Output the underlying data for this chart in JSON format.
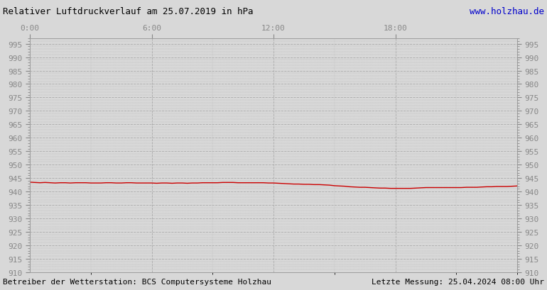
{
  "title": "Relativer Luftdruckverlauf am 25.07.2019 in hPa",
  "title_color": "#000000",
  "url_text": "www.holzhau.de",
  "url_color": "#0000cc",
  "footer_left": "Betreiber der Wetterstation: BCS Computersysteme Holzhau",
  "footer_right": "Letzte Messung: 25.04.2024 08:00 Uhr",
  "footer_color": "#000000",
  "bg_color": "#d8d8d8",
  "plot_bg_color": "#d8d8d8",
  "line_color": "#cc0000",
  "grid_color": "#aaaaaa",
  "tick_color": "#888888",
  "ylim": [
    910,
    997
  ],
  "ytick_step": 5,
  "xtick_labels": [
    "0:00",
    "6:00",
    "12:00",
    "18:00"
  ],
  "xtick_positions": [
    0,
    0.25,
    0.5,
    0.75
  ],
  "pressure_data": [
    [
      0.0,
      943.5
    ],
    [
      0.01,
      943.4
    ],
    [
      0.021,
      943.3
    ],
    [
      0.031,
      943.4
    ],
    [
      0.042,
      943.3
    ],
    [
      0.052,
      943.2
    ],
    [
      0.063,
      943.3
    ],
    [
      0.073,
      943.3
    ],
    [
      0.083,
      943.2
    ],
    [
      0.094,
      943.3
    ],
    [
      0.104,
      943.3
    ],
    [
      0.115,
      943.3
    ],
    [
      0.125,
      943.2
    ],
    [
      0.135,
      943.2
    ],
    [
      0.146,
      943.2
    ],
    [
      0.156,
      943.3
    ],
    [
      0.167,
      943.3
    ],
    [
      0.177,
      943.2
    ],
    [
      0.188,
      943.2
    ],
    [
      0.198,
      943.3
    ],
    [
      0.208,
      943.3
    ],
    [
      0.219,
      943.2
    ],
    [
      0.229,
      943.2
    ],
    [
      0.24,
      943.2
    ],
    [
      0.25,
      943.2
    ],
    [
      0.26,
      943.1
    ],
    [
      0.271,
      943.2
    ],
    [
      0.281,
      943.2
    ],
    [
      0.292,
      943.1
    ],
    [
      0.302,
      943.2
    ],
    [
      0.313,
      943.2
    ],
    [
      0.323,
      943.1
    ],
    [
      0.333,
      943.2
    ],
    [
      0.344,
      943.2
    ],
    [
      0.354,
      943.3
    ],
    [
      0.365,
      943.3
    ],
    [
      0.375,
      943.3
    ],
    [
      0.385,
      943.3
    ],
    [
      0.396,
      943.4
    ],
    [
      0.406,
      943.4
    ],
    [
      0.417,
      943.4
    ],
    [
      0.427,
      943.3
    ],
    [
      0.438,
      943.3
    ],
    [
      0.448,
      943.3
    ],
    [
      0.458,
      943.3
    ],
    [
      0.469,
      943.3
    ],
    [
      0.479,
      943.3
    ],
    [
      0.49,
      943.2
    ],
    [
      0.5,
      943.2
    ],
    [
      0.51,
      943.1
    ],
    [
      0.521,
      943.0
    ],
    [
      0.531,
      942.9
    ],
    [
      0.542,
      942.8
    ],
    [
      0.552,
      942.8
    ],
    [
      0.563,
      942.7
    ],
    [
      0.573,
      942.7
    ],
    [
      0.583,
      942.6
    ],
    [
      0.594,
      942.6
    ],
    [
      0.604,
      942.5
    ],
    [
      0.615,
      942.4
    ],
    [
      0.625,
      942.2
    ],
    [
      0.635,
      942.1
    ],
    [
      0.646,
      942.0
    ],
    [
      0.656,
      941.8
    ],
    [
      0.667,
      941.7
    ],
    [
      0.677,
      941.6
    ],
    [
      0.688,
      941.6
    ],
    [
      0.698,
      941.5
    ],
    [
      0.708,
      941.4
    ],
    [
      0.719,
      941.3
    ],
    [
      0.729,
      941.3
    ],
    [
      0.74,
      941.2
    ],
    [
      0.75,
      941.2
    ],
    [
      0.76,
      941.2
    ],
    [
      0.771,
      941.2
    ],
    [
      0.781,
      941.2
    ],
    [
      0.792,
      941.3
    ],
    [
      0.802,
      941.4
    ],
    [
      0.813,
      941.5
    ],
    [
      0.823,
      941.5
    ],
    [
      0.833,
      941.5
    ],
    [
      0.844,
      941.5
    ],
    [
      0.854,
      941.5
    ],
    [
      0.865,
      941.5
    ],
    [
      0.875,
      941.5
    ],
    [
      0.885,
      941.5
    ],
    [
      0.896,
      941.6
    ],
    [
      0.906,
      941.6
    ],
    [
      0.917,
      941.6
    ],
    [
      0.927,
      941.7
    ],
    [
      0.938,
      941.8
    ],
    [
      0.948,
      941.8
    ],
    [
      0.958,
      941.9
    ],
    [
      0.969,
      941.9
    ],
    [
      0.979,
      941.9
    ],
    [
      0.99,
      942.0
    ],
    [
      1.0,
      942.1
    ]
  ]
}
